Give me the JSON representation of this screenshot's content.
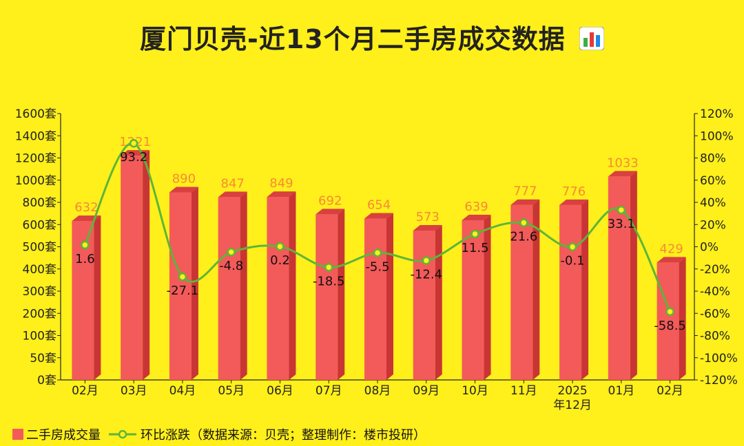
{
  "title": "厦门贝壳-近13个月二手房成交数据",
  "chart_data": {
    "type": "bar",
    "categories": [
      "02月",
      "03月",
      "04月",
      "05月",
      "06月",
      "07月",
      "08月",
      "09月",
      "10月",
      "11月",
      "2025年12月",
      "01月",
      "02月"
    ],
    "category_lines": [
      [
        "02月"
      ],
      [
        "03月"
      ],
      [
        "04月"
      ],
      [
        "05月"
      ],
      [
        "06月"
      ],
      [
        "07月"
      ],
      [
        "08月"
      ],
      [
        "09月"
      ],
      [
        "10月"
      ],
      [
        "11月"
      ],
      [
        "2025",
        "年12月"
      ],
      [
        "01月"
      ],
      [
        "02月"
      ]
    ],
    "series": [
      {
        "name": "二手房成交量",
        "type": "bar",
        "axis": "left",
        "values": [
          632,
          1221,
          890,
          847,
          849,
          692,
          654,
          573,
          639,
          777,
          776,
          1033,
          429
        ],
        "color": "#F35A5A"
      },
      {
        "name": "环比涨跌（数据来源：贝壳；整理制作：楼市投研）",
        "type": "line",
        "axis": "right",
        "values": [
          1.6,
          93.2,
          -27.1,
          -4.8,
          0.2,
          -18.5,
          -5.5,
          -12.4,
          11.5,
          21.6,
          -0.1,
          33.1,
          -58.5
        ],
        "color": "#5DB53A"
      }
    ],
    "bar_labels": [
      "632",
      "1221",
      "890",
      "847",
      "849",
      "692",
      "654",
      "573",
      "639",
      "777",
      "776",
      "1033",
      "429"
    ],
    "left_ticks": [
      {
        "value": 0,
        "label": "0套"
      },
      {
        "value": 50,
        "label": "50套"
      },
      {
        "value": 100,
        "label": "100套"
      },
      {
        "value": 200,
        "label": "200套"
      },
      {
        "value": 300,
        "label": "300套"
      },
      {
        "value": 400,
        "label": "400套"
      },
      {
        "value": 500,
        "label": "500套"
      },
      {
        "value": 600,
        "label": "600套"
      },
      {
        "value": 800,
        "label": "800套"
      },
      {
        "value": 1000,
        "label": "1000套"
      },
      {
        "value": 1200,
        "label": "1200套"
      },
      {
        "value": 1400,
        "label": "1400套"
      },
      {
        "value": 1600,
        "label": "1600套"
      }
    ],
    "right_ticks": [
      "-120%",
      "-100%",
      "-80%",
      "-60%",
      "-40%",
      "-20%",
      "0%",
      "20%",
      "40%",
      "60%",
      "80%",
      "100%",
      "120%"
    ],
    "right_range": [
      -120,
      120
    ],
    "legend_position": "bottom-left",
    "grid": false
  },
  "legend": {
    "bar_label": "二手房成交量",
    "line_label": "环比涨跌（数据来源：贝壳；整理制作：楼市投研）"
  },
  "colors": {
    "background": "#FFEF1A",
    "bar": "#F35A5A",
    "bar_top": "#D94040",
    "bar_side": "#C93535",
    "line": "#5DB53A",
    "bar_label": "#F58A3A",
    "text": "#222222"
  }
}
